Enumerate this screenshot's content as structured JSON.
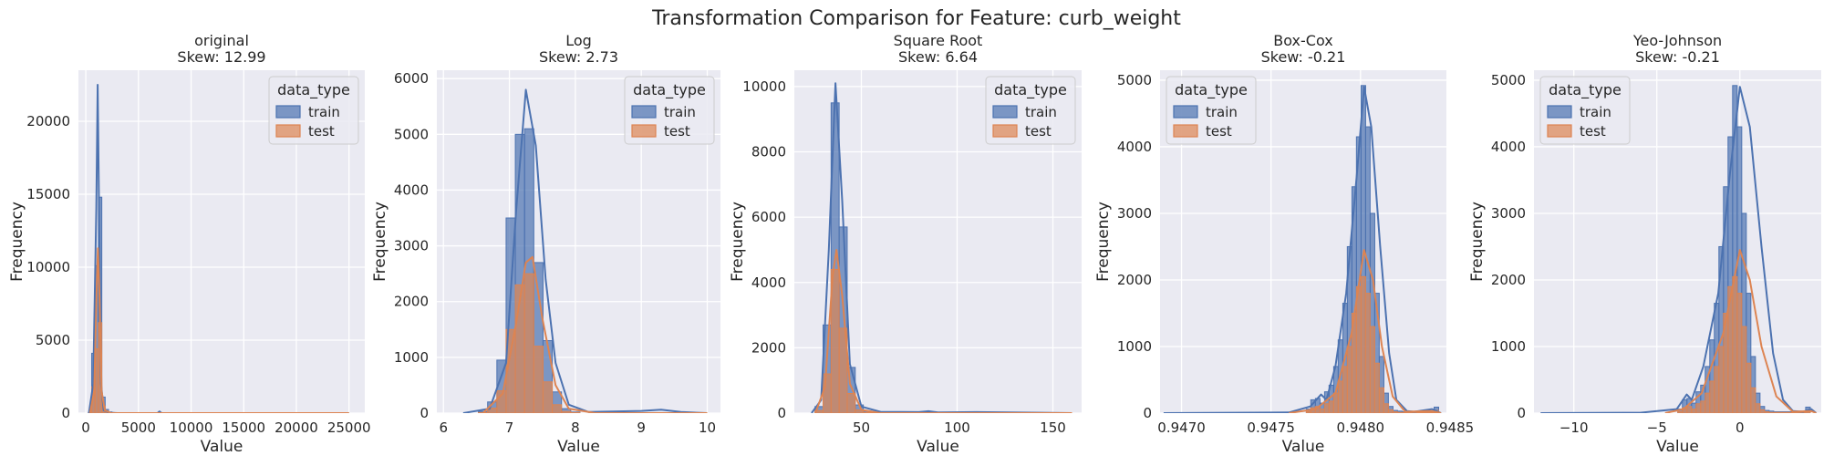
{
  "figure_title": "Transformation Comparison for Feature: curb_weight",
  "legend": {
    "title": "data_type",
    "entries": [
      {
        "name": "train",
        "color": "#4c72b0"
      },
      {
        "name": "test",
        "color": "#dd8452"
      }
    ],
    "placement": [
      "top-right",
      "top-right",
      "top-right",
      "top-left",
      "top-left"
    ]
  },
  "colors": {
    "train": "#4c72b0",
    "test": "#dd8452",
    "axes_bg": "#eaeaf2",
    "grid": "#ffffff"
  },
  "chart_data": [
    {
      "type": "bar",
      "title": "original",
      "subtitle": "Skew: 12.99",
      "xlabel": "Value",
      "ylabel": "Frequency",
      "xlim": [
        -700,
        26500
      ],
      "ylim": [
        0,
        23500
      ],
      "xticks": [
        0,
        5000,
        10000,
        15000,
        20000,
        25000
      ],
      "xtick_labels": [
        "0",
        "5000",
        "10000",
        "15000",
        "20000",
        "25000"
      ],
      "yticks": [
        0,
        5000,
        10000,
        15000,
        20000
      ],
      "ytick_labels": [
        "0",
        "5000",
        "10000",
        "15000",
        "20000"
      ],
      "bin_width": 320,
      "bins_x": [
        400,
        720,
        1040,
        1360,
        1680,
        2000,
        2320,
        2640
      ],
      "train": [
        30,
        4100,
        10100,
        14800,
        1100,
        250,
        80,
        20
      ],
      "test": [
        10,
        1800,
        4400,
        6200,
        480,
        100,
        30,
        10
      ],
      "kde_train": [
        [
          300,
          0
        ],
        [
          700,
          2000
        ],
        [
          1000,
          14000
        ],
        [
          1130,
          22500
        ],
        [
          1260,
          14000
        ],
        [
          1450,
          2000
        ],
        [
          1700,
          200
        ],
        [
          2200,
          40
        ],
        [
          3000,
          0
        ],
        [
          6800,
          0
        ],
        [
          7000,
          120
        ],
        [
          7200,
          0
        ],
        [
          10000,
          0
        ],
        [
          25000,
          0
        ]
      ],
      "kde_test": [
        [
          400,
          0
        ],
        [
          800,
          1500
        ],
        [
          1050,
          9000
        ],
        [
          1150,
          11300
        ],
        [
          1300,
          8000
        ],
        [
          1500,
          1500
        ],
        [
          1800,
          200
        ],
        [
          2400,
          0
        ],
        [
          25000,
          0
        ]
      ]
    },
    {
      "type": "bar",
      "title": "Log",
      "subtitle": "Skew: 2.73",
      "xlabel": "Value",
      "ylabel": "Frequency",
      "xlim": [
        5.9,
        10.2
      ],
      "ylim": [
        0,
        6150
      ],
      "xticks": [
        6,
        7,
        8,
        9,
        10
      ],
      "xtick_labels": [
        "6",
        "7",
        "8",
        "9",
        "10"
      ],
      "yticks": [
        0,
        1000,
        2000,
        3000,
        4000,
        5000,
        6000
      ],
      "ytick_labels": [
        "0",
        "1000",
        "2000",
        "3000",
        "4000",
        "5000",
        "6000"
      ],
      "bin_width": 0.14,
      "bins_x": [
        6.6,
        6.74,
        6.88,
        7.02,
        7.16,
        7.3,
        7.44,
        7.58,
        7.72,
        7.86,
        8.0
      ],
      "train": [
        30,
        200,
        950,
        3500,
        5000,
        5100,
        2700,
        1300,
        380,
        80,
        20
      ],
      "test": [
        10,
        90,
        400,
        1500,
        2300,
        2500,
        1200,
        560,
        150,
        30,
        10
      ],
      "kde_train": [
        [
          6.3,
          0
        ],
        [
          6.7,
          80
        ],
        [
          6.95,
          900
        ],
        [
          7.1,
          3600
        ],
        [
          7.25,
          5800
        ],
        [
          7.4,
          4800
        ],
        [
          7.55,
          2400
        ],
        [
          7.7,
          900
        ],
        [
          7.9,
          150
        ],
        [
          8.2,
          20
        ],
        [
          9.0,
          40
        ],
        [
          9.3,
          60
        ],
        [
          9.6,
          20
        ],
        [
          10,
          0
        ]
      ],
      "kde_test": [
        [
          6.6,
          0
        ],
        [
          6.9,
          350
        ],
        [
          7.1,
          1600
        ],
        [
          7.25,
          2700
        ],
        [
          7.35,
          2800
        ],
        [
          7.5,
          1700
        ],
        [
          7.7,
          500
        ],
        [
          7.9,
          80
        ],
        [
          8.3,
          0
        ],
        [
          10,
          0
        ]
      ]
    },
    {
      "type": "bar",
      "title": "Square Root",
      "subtitle": "Skew: 6.64",
      "xlabel": "Value",
      "ylabel": "Frequency",
      "xlim": [
        15,
        165
      ],
      "ylim": [
        0,
        10500
      ],
      "xticks": [
        50,
        100,
        150
      ],
      "xtick_labels": [
        "50",
        "100",
        "150"
      ],
      "yticks": [
        0,
        2000,
        4000,
        6000,
        8000,
        10000
      ],
      "ytick_labels": [
        "0",
        "2000",
        "4000",
        "6000",
        "8000",
        "10000"
      ],
      "bin_width": 4.2,
      "bins_x": [
        27.9,
        32.1,
        36.3,
        40.5,
        44.7,
        48.9,
        53.1,
        57.3
      ],
      "train": [
        200,
        2700,
        9500,
        5700,
        1400,
        250,
        60,
        20
      ],
      "test": [
        80,
        1200,
        4400,
        2600,
        600,
        100,
        20,
        10
      ],
      "kde_train": [
        [
          24,
          0
        ],
        [
          29,
          400
        ],
        [
          33,
          5000
        ],
        [
          36.5,
          10100
        ],
        [
          40,
          6500
        ],
        [
          44,
          1500
        ],
        [
          50,
          200
        ],
        [
          60,
          40
        ],
        [
          80,
          30
        ],
        [
          85,
          60
        ],
        [
          90,
          20
        ],
        [
          110,
          30
        ],
        [
          160,
          0
        ]
      ],
      "kde_test": [
        [
          26,
          0
        ],
        [
          31,
          800
        ],
        [
          35,
          4200
        ],
        [
          37,
          5000
        ],
        [
          40,
          3600
        ],
        [
          44,
          900
        ],
        [
          50,
          100
        ],
        [
          60,
          0
        ],
        [
          160,
          0
        ]
      ]
    },
    {
      "type": "bar",
      "title": "Box-Cox",
      "subtitle": "Skew: -0.21",
      "xlabel": "Value",
      "ylabel": "Frequency",
      "xlim": [
        0.94688,
        0.94848
      ],
      "ylim": [
        0,
        5150
      ],
      "xticks": [
        0.947,
        0.9475,
        0.948,
        0.9485
      ],
      "xtick_labels": [
        "0.9470",
        "0.9475",
        "0.9480",
        "0.9485"
      ],
      "yticks": [
        0,
        1000,
        2000,
        3000,
        4000,
        5000
      ],
      "ytick_labels": [
        "0",
        "1000",
        "2000",
        "3000",
        "4000",
        "5000"
      ],
      "bin_width": 2.55e-05,
      "bins_x": [
        0.94771,
        0.947735,
        0.947761,
        0.947786,
        0.947812,
        0.947837,
        0.947863,
        0.947888,
        0.947914,
        0.947939,
        0.947965,
        0.94799,
        0.948016,
        0.948041,
        0.948067,
        0.948092,
        0.948118,
        0.948143,
        0.948169,
        0.948194,
        0.94822,
        0.948245,
        0.948271,
        0.948296,
        0.948322,
        0.948347,
        0.948373,
        0.948398,
        0.948424
      ],
      "train": [
        60,
        200,
        220,
        150,
        320,
        420,
        700,
        1100,
        1650,
        2500,
        3400,
        4150,
        4920,
        4300,
        3000,
        1800,
        850,
        300,
        100,
        40,
        30,
        20,
        20,
        20,
        20,
        20,
        20,
        20,
        90
      ],
      "test": [
        20,
        80,
        100,
        60,
        140,
        180,
        300,
        480,
        700,
        1000,
        1500,
        1900,
        2050,
        1800,
        1300,
        750,
        380,
        140,
        50,
        20,
        10,
        10,
        10,
        10,
        10,
        10,
        10,
        10,
        40
      ],
      "kde_train": [
        [
          0.9469,
          0
        ],
        [
          0.9476,
          10
        ],
        [
          0.94772,
          100
        ],
        [
          0.94778,
          280
        ],
        [
          0.94781,
          200
        ],
        [
          0.94786,
          700
        ],
        [
          0.94792,
          1800
        ],
        [
          0.94798,
          3600
        ],
        [
          0.94802,
          4900
        ],
        [
          0.94806,
          4300
        ],
        [
          0.94811,
          2500
        ],
        [
          0.94816,
          900
        ],
        [
          0.9482,
          200
        ],
        [
          0.94826,
          30
        ],
        [
          0.9483,
          20
        ],
        [
          0.9484,
          60
        ],
        [
          0.94845,
          0
        ]
      ],
      "kde_test": [
        [
          0.9476,
          0
        ],
        [
          0.94775,
          60
        ],
        [
          0.94786,
          300
        ],
        [
          0.94795,
          1200
        ],
        [
          0.94802,
          2450
        ],
        [
          0.94807,
          2000
        ],
        [
          0.94812,
          1000
        ],
        [
          0.94818,
          250
        ],
        [
          0.94825,
          20
        ],
        [
          0.9484,
          30
        ],
        [
          0.94845,
          0
        ]
      ]
    },
    {
      "type": "bar",
      "title": "Yeo-Johnson",
      "subtitle": "Skew: -0.21",
      "xlabel": "Value",
      "ylabel": "Frequency",
      "xlim": [
        -12.4,
        4.9
      ],
      "ylim": [
        0,
        5150
      ],
      "xticks": [
        -10,
        -5,
        0
      ],
      "xtick_labels": [
        "−10",
        "−5",
        "0"
      ],
      "yticks": [
        0,
        1000,
        2000,
        3000,
        4000,
        5000
      ],
      "ytick_labels": [
        "0",
        "1000",
        "2000",
        "3000",
        "4000",
        "5000"
      ],
      "bin_width": 0.275,
      "bins_x": [
        -3.6,
        -3.325,
        -3.05,
        -2.775,
        -2.5,
        -2.225,
        -1.95,
        -1.675,
        -1.4,
        -1.125,
        -0.85,
        -0.575,
        -0.3,
        -0.025,
        0.25,
        0.525,
        0.8,
        1.075,
        1.35,
        1.625,
        1.9,
        2.175,
        2.45,
        2.725,
        3.0,
        3.275,
        3.55,
        3.825,
        4.1
      ],
      "train": [
        60,
        200,
        220,
        150,
        320,
        420,
        700,
        1100,
        1650,
        2500,
        3400,
        4150,
        4920,
        4300,
        3000,
        1800,
        850,
        300,
        100,
        40,
        30,
        20,
        20,
        20,
        20,
        20,
        20,
        20,
        90
      ],
      "test": [
        20,
        80,
        100,
        60,
        140,
        180,
        300,
        480,
        700,
        1000,
        1500,
        1900,
        2050,
        1800,
        1300,
        750,
        380,
        140,
        50,
        20,
        10,
        10,
        10,
        10,
        10,
        10,
        10,
        10,
        40
      ],
      "kde_train": [
        [
          -12,
          0
        ],
        [
          -6,
          5
        ],
        [
          -3.8,
          60
        ],
        [
          -3.2,
          280
        ],
        [
          -2.9,
          200
        ],
        [
          -2.2,
          700
        ],
        [
          -1.3,
          1800
        ],
        [
          -0.6,
          3600
        ],
        [
          0,
          4900
        ],
        [
          0.6,
          4300
        ],
        [
          1.3,
          2500
        ],
        [
          2.0,
          900
        ],
        [
          2.6,
          200
        ],
        [
          3.2,
          30
        ],
        [
          3.8,
          20
        ],
        [
          4.3,
          60
        ],
        [
          4.6,
          0
        ]
      ],
      "kde_test": [
        [
          -4.5,
          0
        ],
        [
          -3.4,
          60
        ],
        [
          -2.3,
          300
        ],
        [
          -1.0,
          1200
        ],
        [
          0,
          2450
        ],
        [
          0.6,
          2000
        ],
        [
          1.3,
          1000
        ],
        [
          2.2,
          250
        ],
        [
          3.2,
          20
        ],
        [
          4.3,
          30
        ],
        [
          4.6,
          0
        ]
      ]
    }
  ]
}
